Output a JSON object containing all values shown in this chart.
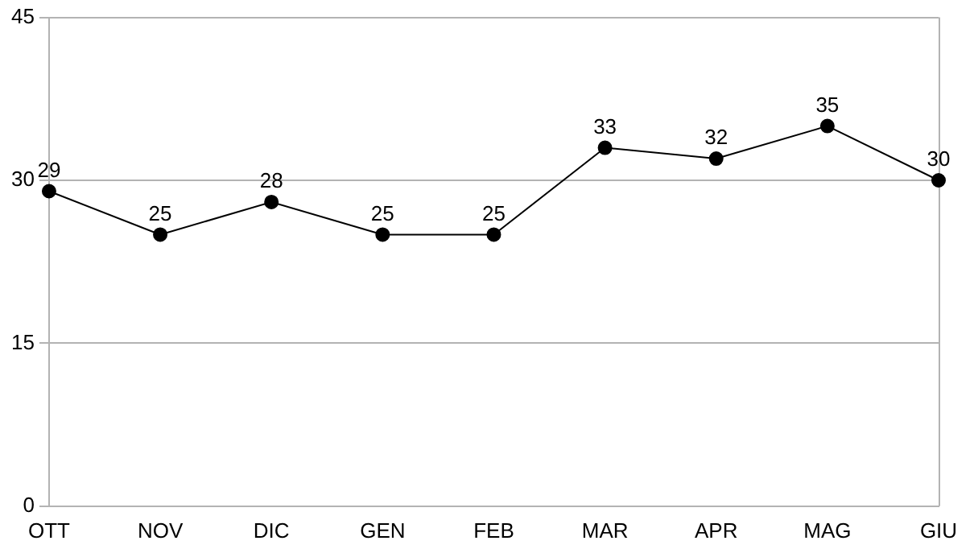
{
  "chart_data": {
    "type": "line",
    "categories": [
      "OTT",
      "NOV",
      "DIC",
      "GEN",
      "FEB",
      "MAR",
      "APR",
      "MAG",
      "GIU"
    ],
    "series": [
      {
        "color": "#000000",
        "values": [
          29,
          25,
          28,
          25,
          25,
          33,
          32,
          35,
          30
        ]
      }
    ],
    "ylim": [
      0,
      45
    ],
    "yticks": [
      0,
      15,
      30,
      45
    ],
    "grid": "y",
    "legend": false,
    "marker": "circle",
    "line_style": "solid",
    "data_labels": true
  }
}
